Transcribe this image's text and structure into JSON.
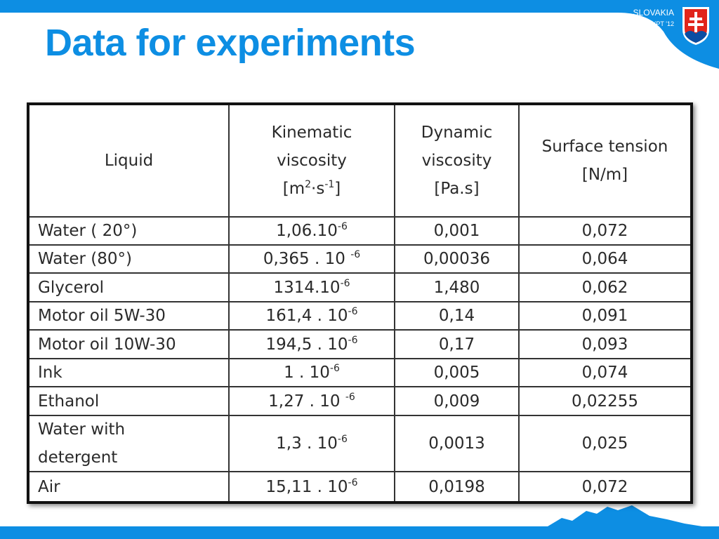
{
  "header": {
    "title": "Data for experiments",
    "logo": {
      "country": "SLOVAKIA",
      "event": "IYPT '12"
    }
  },
  "table": {
    "columns": [
      [
        [
          {
            "text": "Liquid"
          }
        ]
      ],
      [
        [
          {
            "text": "Kinematic"
          }
        ],
        [
          {
            "text": "viscosity"
          }
        ],
        [
          {
            "text": "[m"
          },
          {
            "sup": "2"
          },
          {
            "text": "·s"
          },
          {
            "sup": "-1"
          },
          {
            "text": "]"
          }
        ]
      ],
      [
        [
          {
            "text": "Dynamic"
          }
        ],
        [
          {
            "text": "viscosity"
          }
        ],
        [
          {
            "text": "[Pa.s]"
          }
        ]
      ],
      [
        [
          {
            "text": "Surface tension"
          }
        ],
        [
          {
            "text": "[N/m]"
          }
        ]
      ]
    ],
    "rows": [
      [
        "Water ( 20°)",
        {
          "text": "1,06.10",
          "sup": "-6"
        },
        "0,001",
        "0,072"
      ],
      [
        "Water (80°)",
        {
          "text": "0,365 . 10 ",
          "sup": "-6"
        },
        "0,00036",
        "0,064"
      ],
      [
        "Glycerol",
        {
          "text": "1314.10",
          "sup": "-6"
        },
        "1,480",
        "0,062"
      ],
      [
        "Motor oil 5W-30",
        {
          "text": "161,4 . 10",
          "sup": "-6"
        },
        "0,14",
        "0,091"
      ],
      [
        "Motor oil 10W-30",
        {
          "text": "194,5 . 10",
          "sup": "-6"
        },
        "0,17",
        "0,093"
      ],
      [
        "Ink",
        {
          "text": "1 . 10",
          "sup": "-6"
        },
        "0,005",
        "0,074"
      ],
      [
        "Ethanol",
        {
          "text": "1,27 . 10 ",
          "sup": "-6"
        },
        "0,009",
        "0,02255"
      ],
      [
        [
          "Water with",
          "detergent"
        ],
        {
          "text": "1,3 . 10",
          "sup": "-6"
        },
        "0,0013",
        "0,025"
      ],
      [
        "Air",
        {
          "text": "15,11 . 10",
          "sup": "-6"
        },
        "0,0198",
        "0,072"
      ]
    ]
  }
}
